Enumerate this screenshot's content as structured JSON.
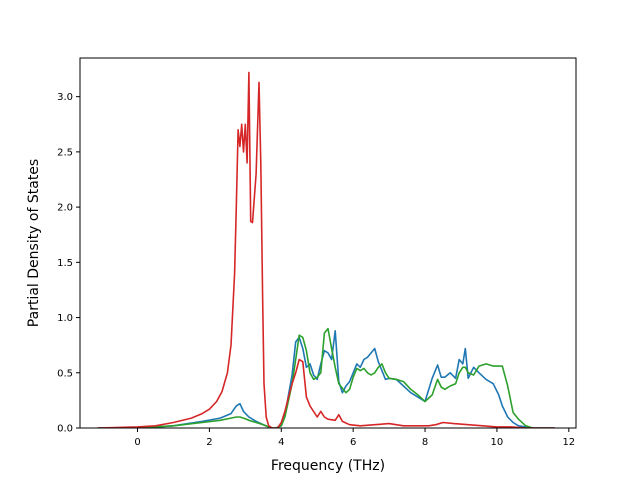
{
  "chart_data": {
    "type": "line",
    "title": "",
    "xlabel": "Frequency (THz)",
    "ylabel": "Partial Density of States",
    "xlim": [
      -1.6,
      12.2
    ],
    "ylim": [
      0.0,
      3.35
    ],
    "xticks": [
      0,
      2,
      4,
      6,
      8,
      10,
      12
    ],
    "xtick_labels": [
      "0",
      "2",
      "4",
      "6",
      "8",
      "10",
      "12"
    ],
    "yticks": [
      0.0,
      0.5,
      1.0,
      1.5,
      2.0,
      2.5,
      3.0
    ],
    "ytick_labels": [
      "0.0",
      "0.5",
      "1.0",
      "1.5",
      "2.0",
      "2.5",
      "3.0"
    ],
    "grid": false,
    "legend": "none",
    "series": [
      {
        "color": "#1f77b4",
        "x": [
          -1.1,
          0.0,
          1.0,
          1.8,
          2.3,
          2.6,
          2.75,
          2.85,
          2.95,
          3.1,
          3.3,
          3.5,
          3.65,
          3.75,
          3.85,
          4.0,
          4.1,
          4.2,
          4.3,
          4.4,
          4.5,
          4.6,
          4.7,
          4.8,
          4.9,
          5.0,
          5.1,
          5.2,
          5.3,
          5.4,
          5.5,
          5.6,
          5.7,
          5.8,
          5.9,
          6.0,
          6.1,
          6.2,
          6.3,
          6.4,
          6.5,
          6.6,
          6.7,
          6.8,
          6.9,
          7.0,
          7.2,
          7.4,
          7.6,
          7.8,
          8.0,
          8.2,
          8.35,
          8.45,
          8.55,
          8.7,
          8.85,
          8.95,
          9.05,
          9.12,
          9.2,
          9.35,
          9.5,
          9.7,
          9.9,
          10.05,
          10.15,
          10.3,
          10.45,
          10.6,
          10.8,
          11.0,
          11.6
        ],
        "y": [
          0.0,
          0.0,
          0.02,
          0.06,
          0.09,
          0.13,
          0.2,
          0.22,
          0.15,
          0.1,
          0.06,
          0.03,
          0.01,
          0.0,
          0.0,
          0.02,
          0.12,
          0.3,
          0.48,
          0.78,
          0.82,
          0.72,
          0.55,
          0.58,
          0.48,
          0.44,
          0.58,
          0.7,
          0.68,
          0.62,
          0.88,
          0.42,
          0.32,
          0.38,
          0.42,
          0.5,
          0.58,
          0.55,
          0.62,
          0.64,
          0.68,
          0.72,
          0.6,
          0.52,
          0.44,
          0.45,
          0.44,
          0.38,
          0.32,
          0.28,
          0.24,
          0.45,
          0.57,
          0.46,
          0.46,
          0.5,
          0.45,
          0.62,
          0.58,
          0.72,
          0.45,
          0.55,
          0.5,
          0.44,
          0.4,
          0.3,
          0.2,
          0.1,
          0.05,
          0.02,
          0.01,
          0.0,
          0.0
        ]
      },
      {
        "color": "#2ca02c",
        "x": [
          -1.1,
          0.0,
          1.0,
          1.8,
          2.3,
          2.6,
          2.75,
          2.85,
          2.95,
          3.1,
          3.3,
          3.5,
          3.65,
          3.75,
          3.85,
          4.0,
          4.1,
          4.2,
          4.3,
          4.4,
          4.5,
          4.6,
          4.7,
          4.8,
          4.9,
          5.0,
          5.1,
          5.2,
          5.3,
          5.4,
          5.5,
          5.6,
          5.7,
          5.8,
          5.9,
          6.0,
          6.1,
          6.2,
          6.3,
          6.4,
          6.5,
          6.6,
          6.7,
          6.8,
          6.9,
          7.0,
          7.2,
          7.4,
          7.6,
          7.8,
          8.0,
          8.2,
          8.35,
          8.45,
          8.55,
          8.7,
          8.85,
          8.95,
          9.05,
          9.12,
          9.2,
          9.35,
          9.5,
          9.7,
          9.9,
          10.05,
          10.15,
          10.3,
          10.45,
          10.6,
          10.8,
          11.0,
          11.6
        ],
        "y": [
          0.0,
          0.0,
          0.02,
          0.05,
          0.07,
          0.09,
          0.1,
          0.1,
          0.09,
          0.07,
          0.05,
          0.03,
          0.01,
          0.0,
          0.0,
          0.02,
          0.1,
          0.25,
          0.4,
          0.62,
          0.84,
          0.82,
          0.7,
          0.5,
          0.44,
          0.46,
          0.5,
          0.86,
          0.9,
          0.72,
          0.55,
          0.4,
          0.36,
          0.32,
          0.35,
          0.46,
          0.54,
          0.52,
          0.54,
          0.5,
          0.48,
          0.5,
          0.55,
          0.58,
          0.5,
          0.45,
          0.44,
          0.42,
          0.35,
          0.3,
          0.24,
          0.3,
          0.44,
          0.37,
          0.35,
          0.38,
          0.4,
          0.5,
          0.55,
          0.55,
          0.5,
          0.48,
          0.56,
          0.58,
          0.56,
          0.56,
          0.56,
          0.38,
          0.14,
          0.08,
          0.02,
          0.0,
          0.0
        ]
      },
      {
        "color": "#d62728",
        "x": [
          -1.1,
          0.0,
          0.5,
          1.0,
          1.5,
          1.8,
          2.0,
          2.2,
          2.35,
          2.5,
          2.6,
          2.7,
          2.75,
          2.8,
          2.85,
          2.9,
          2.95,
          3.0,
          3.05,
          3.1,
          3.15,
          3.2,
          3.3,
          3.38,
          3.43,
          3.48,
          3.52,
          3.58,
          3.65,
          3.75,
          3.9,
          4.0,
          4.1,
          4.2,
          4.3,
          4.4,
          4.5,
          4.6,
          4.7,
          4.8,
          5.0,
          5.1,
          5.2,
          5.3,
          5.5,
          5.6,
          5.7,
          5.9,
          6.2,
          6.6,
          7.0,
          7.4,
          7.8,
          8.1,
          8.3,
          8.5,
          8.8,
          9.2,
          9.6,
          10.0,
          10.4,
          10.8,
          11.6
        ],
        "y": [
          0.0,
          0.01,
          0.02,
          0.05,
          0.09,
          0.13,
          0.17,
          0.24,
          0.33,
          0.5,
          0.75,
          1.4,
          2.0,
          2.7,
          2.55,
          2.75,
          2.5,
          2.75,
          2.4,
          3.22,
          1.87,
          1.86,
          2.3,
          3.13,
          2.4,
          1.2,
          0.4,
          0.1,
          0.02,
          0.0,
          0.0,
          0.05,
          0.15,
          0.28,
          0.4,
          0.5,
          0.62,
          0.6,
          0.28,
          0.2,
          0.1,
          0.15,
          0.1,
          0.08,
          0.07,
          0.12,
          0.06,
          0.03,
          0.02,
          0.03,
          0.04,
          0.02,
          0.02,
          0.02,
          0.03,
          0.05,
          0.04,
          0.03,
          0.02,
          0.01,
          0.01,
          0.0,
          0.0
        ]
      }
    ]
  }
}
